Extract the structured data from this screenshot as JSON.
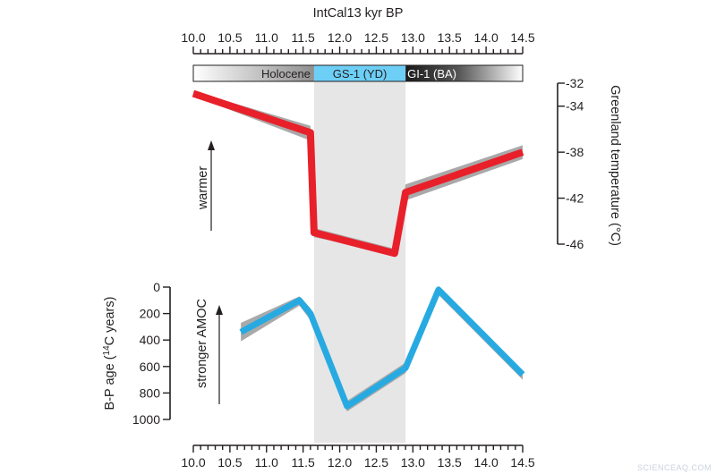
{
  "chart_data": {
    "type": "line",
    "title": "IntCal13 kyr BP",
    "x_axis": {
      "label": "IntCal13 kyr BP",
      "range": [
        10.0,
        14.5
      ],
      "ticks": [
        "10.0",
        "10.5",
        "11.0",
        "11.5",
        "12.0",
        "12.5",
        "13.0",
        "13.5",
        "14.0",
        "14.5"
      ],
      "minor_step": 0.1,
      "shown": "top and bottom"
    },
    "periods": [
      {
        "label": "Holocene",
        "start": 10.0,
        "end": 11.65,
        "color": "#b8b8b8"
      },
      {
        "label": "GS-1 (YD)",
        "start": 11.65,
        "end": 12.9,
        "color": "#6dcff6"
      },
      {
        "label": "GI-1 (BA)",
        "start": 12.9,
        "end": 14.5,
        "color": "#2a2a2a"
      }
    ],
    "shaded_interval": {
      "start": 11.65,
      "end": 12.9,
      "color": "#e6e6e6"
    },
    "panels": [
      {
        "name": "temperature",
        "y_label": "Greenland temperature (°C)",
        "y_range": [
          -46,
          -32
        ],
        "y_ticks": [
          "-32",
          "-34",
          "-38",
          "-42",
          "-46"
        ],
        "y_tick_values": [
          -32,
          -34,
          -38,
          -42,
          -46
        ],
        "axis_side": "right",
        "direction_label": "warmer",
        "series": {
          "color": "#e8202a",
          "band_color": "#a9a9a9",
          "x": [
            10.0,
            11.6,
            11.65,
            12.75,
            12.9,
            14.5
          ],
          "y": [
            -32.9,
            -36.3,
            -45.0,
            -46.8,
            -41.5,
            -38.0
          ],
          "band_low": [
            -33.1,
            -37.0,
            -45.4,
            -46.8,
            -42.2,
            -38.6
          ],
          "band_high": [
            -32.7,
            -35.7,
            -44.6,
            -46.4,
            -40.8,
            -37.4
          ]
        }
      },
      {
        "name": "b_p_age",
        "y_label": "B-P age (¹⁴C years)",
        "y_label_parts": [
          "B-P age (",
          "14",
          "C years)"
        ],
        "y_range": [
          0,
          1000
        ],
        "y_reversed": true,
        "y_ticks": [
          "0",
          "200",
          "400",
          "600",
          "800",
          "1000"
        ],
        "y_tick_values": [
          0,
          200,
          400,
          600,
          800,
          1000
        ],
        "axis_side": "left",
        "direction_label": "stronger AMOC",
        "series": {
          "color": "#27aae1",
          "band_color": "#a9a9a9",
          "x": [
            10.65,
            11.45,
            11.6,
            12.1,
            12.9,
            13.35,
            14.5
          ],
          "y": [
            340,
            100,
            200,
            900,
            610,
            20,
            660
          ],
          "band_low": [
            410,
            140,
            250,
            940,
            650,
            60,
            700
          ],
          "band_high": [
            270,
            70,
            160,
            860,
            570,
            -10,
            630
          ]
        }
      }
    ],
    "grid": false,
    "legend": "none"
  },
  "watermark": "SCIENCEAQ.COM"
}
